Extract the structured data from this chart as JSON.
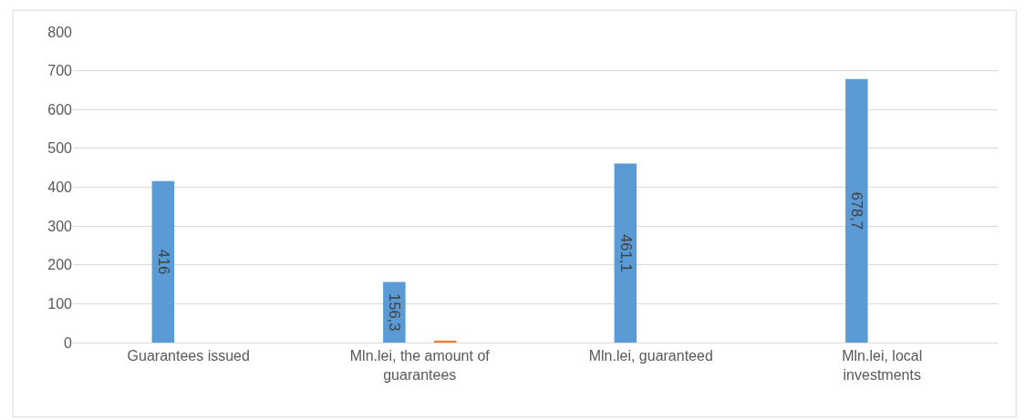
{
  "chart_data": {
    "type": "bar",
    "categories": [
      "Guarantees issued",
      "Mln.lei, the amount of guarantees",
      "Mln.lei, guaranteed",
      "Mln.lei, local investments"
    ],
    "series": [
      {
        "color": "#5b9bd5",
        "values": [
          416,
          156.3,
          461.1,
          678.7
        ],
        "value_labels": [
          "416",
          "156,3",
          "461,1",
          "678,7"
        ]
      },
      {
        "color": "#ed7d31",
        "values": [
          null,
          5,
          null,
          null
        ]
      }
    ],
    "ylim": [
      0,
      800
    ],
    "yticks": [
      0,
      100,
      200,
      300,
      400,
      500,
      600,
      700,
      800
    ],
    "grid": "y",
    "legend": false
  }
}
